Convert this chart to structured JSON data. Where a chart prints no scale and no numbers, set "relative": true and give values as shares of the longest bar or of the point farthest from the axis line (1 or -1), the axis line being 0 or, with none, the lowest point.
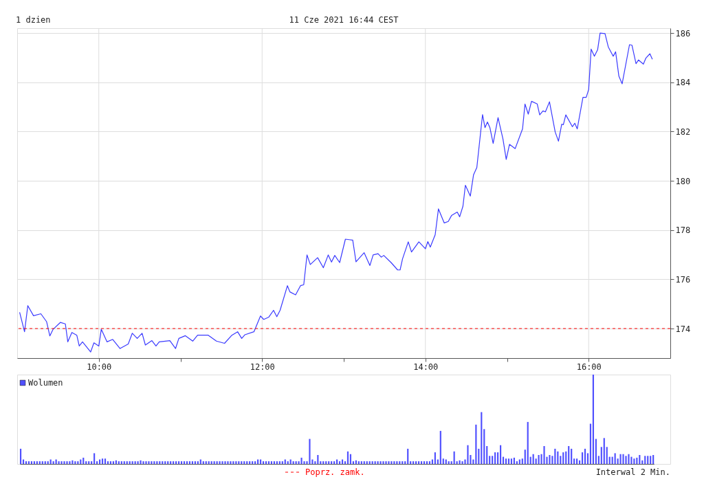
{
  "chart_data": [
    {
      "type": "line",
      "title": "1 dzien",
      "annotations": [
        "11 Cze 2021 16:44 CEST"
      ],
      "xlim": [
        9,
        17
      ],
      "xticks": [
        {
          "value": 10,
          "label": "10:00"
        },
        {
          "value": 11,
          "label": null
        },
        {
          "value": 12,
          "label": "12:00"
        },
        {
          "value": 13,
          "label": null
        },
        {
          "value": 14,
          "label": "14:00"
        },
        {
          "value": 15,
          "label": null
        },
        {
          "value": 16,
          "label": "16:00"
        }
      ],
      "ylim": [
        172.8,
        186.2
      ],
      "yticks": [
        174,
        176,
        178,
        180,
        182,
        184,
        186
      ],
      "grid": true,
      "ref_lines": [
        {
          "axis": "y",
          "value": 174,
          "label": "Poprz. zamk.",
          "color": "#ff0000",
          "line_style": "dashed"
        }
      ],
      "series": [
        {
          "color": "#3a3aff",
          "x": [
            9.03,
            9.09,
            9.13,
            9.2,
            9.29,
            9.36,
            9.4,
            9.44,
            9.53,
            9.59,
            9.62,
            9.67,
            9.73,
            9.76,
            9.8,
            9.9,
            9.94,
            10.0,
            10.03,
            10.1,
            10.17,
            10.26,
            10.36,
            10.41,
            10.47,
            10.53,
            10.57,
            10.65,
            10.7,
            10.74,
            10.87,
            10.94,
            10.98,
            11.06,
            11.15,
            11.21,
            11.34,
            11.44,
            11.54,
            11.63,
            11.7,
            11.75,
            11.79,
            11.9,
            11.98,
            12.02,
            12.08,
            12.14,
            12.18,
            12.22,
            12.31,
            12.34,
            12.41,
            12.47,
            12.51,
            12.55,
            12.59,
            12.68,
            12.75,
            12.81,
            12.85,
            12.89,
            12.95,
            13.02,
            13.11,
            13.15,
            13.25,
            13.32,
            13.36,
            13.42,
            13.46,
            13.49,
            13.58,
            13.66,
            13.69,
            13.72,
            13.79,
            13.83,
            13.92,
            14.0,
            14.03,
            14.06,
            14.12,
            14.16,
            14.23,
            14.28,
            14.32,
            14.39,
            14.42,
            14.46,
            14.49,
            14.55,
            14.59,
            14.63,
            14.7,
            14.73,
            14.76,
            14.79,
            14.83,
            14.89,
            14.95,
            14.99,
            15.03,
            15.1,
            15.19,
            15.22,
            15.26,
            15.3,
            15.37,
            15.4,
            15.44,
            15.47,
            15.52,
            15.59,
            15.63,
            15.67,
            15.69,
            15.72,
            15.8,
            15.83,
            15.86,
            15.93,
            15.97,
            16.0,
            16.03,
            16.07,
            16.11,
            16.14,
            16.2,
            16.24,
            16.3,
            16.33,
            16.37,
            16.41,
            16.5,
            16.53,
            16.58,
            16.61,
            16.67,
            16.7,
            16.75,
            16.78
          ],
          "values": [
            174.66,
            173.87,
            174.93,
            174.52,
            174.6,
            174.28,
            173.7,
            173.97,
            174.25,
            174.19,
            173.46,
            173.84,
            173.73,
            173.29,
            173.46,
            173.05,
            173.42,
            173.29,
            173.97,
            173.46,
            173.56,
            173.19,
            173.37,
            173.81,
            173.6,
            173.81,
            173.33,
            173.51,
            173.29,
            173.46,
            173.51,
            173.19,
            173.6,
            173.71,
            173.49,
            173.73,
            173.73,
            173.49,
            173.4,
            173.73,
            173.87,
            173.6,
            173.75,
            173.87,
            174.51,
            174.37,
            174.46,
            174.74,
            174.48,
            174.74,
            175.74,
            175.49,
            175.37,
            175.74,
            175.78,
            176.99,
            176.6,
            176.88,
            176.47,
            176.99,
            176.7,
            176.97,
            176.68,
            177.63,
            177.59,
            176.71,
            177.08,
            176.56,
            176.99,
            177.04,
            176.9,
            176.97,
            176.68,
            176.38,
            176.38,
            176.83,
            177.52,
            177.11,
            177.52,
            177.24,
            177.53,
            177.31,
            177.81,
            178.86,
            178.29,
            178.35,
            178.59,
            178.73,
            178.54,
            178.97,
            179.82,
            179.38,
            180.25,
            180.54,
            182.69,
            182.16,
            182.39,
            182.16,
            181.52,
            182.57,
            181.7,
            180.87,
            181.48,
            181.31,
            182.11,
            183.12,
            182.71,
            183.23,
            183.12,
            182.68,
            182.84,
            182.8,
            183.21,
            181.98,
            181.61,
            182.3,
            182.28,
            182.68,
            182.2,
            182.34,
            182.11,
            183.39,
            183.39,
            183.71,
            185.35,
            185.06,
            185.33,
            186.0,
            185.98,
            185.44,
            185.06,
            185.24,
            184.25,
            183.94,
            185.53,
            185.51,
            184.76,
            184.91,
            184.74,
            184.98,
            185.16,
            184.94
          ]
        }
      ]
    },
    {
      "type": "bar",
      "relative": true,
      "legend": "top left",
      "annotations": [
        "Interwal 2 Min."
      ],
      "categories": [
        null,
        null,
        null,
        null,
        null,
        null,
        null,
        null,
        null,
        null,
        null,
        null,
        null,
        null,
        null,
        null,
        null,
        null,
        null,
        null,
        null,
        null,
        null,
        null,
        null,
        null,
        null,
        null,
        null,
        null,
        null,
        null,
        null,
        null,
        null,
        null,
        null,
        null,
        null,
        null,
        null,
        null,
        null,
        null,
        null,
        null,
        null,
        null,
        null,
        null,
        null,
        null,
        null,
        null,
        null,
        null,
        null,
        null,
        null,
        null,
        null,
        null,
        null,
        null,
        null,
        null,
        null,
        null,
        null,
        null,
        null,
        null,
        null,
        null,
        null,
        null,
        null,
        null,
        null,
        null,
        null,
        null,
        null,
        null,
        null,
        null,
        null,
        null,
        null,
        null,
        null,
        null,
        null,
        null,
        null,
        null,
        null,
        null,
        null,
        null,
        null,
        null,
        null,
        null,
        null,
        null,
        null,
        null,
        null,
        null,
        null,
        null,
        null,
        null,
        null,
        null,
        null,
        null,
        null,
        null,
        null,
        null,
        null,
        null,
        null,
        null,
        null,
        null,
        null,
        null,
        null,
        null,
        null,
        null,
        null,
        null,
        null,
        null,
        null,
        null,
        null,
        null,
        null,
        null,
        null,
        null,
        null,
        null,
        null,
        null,
        null,
        null,
        null,
        null,
        null,
        null,
        null,
        null,
        null,
        null,
        null,
        null,
        null,
        null,
        null,
        null,
        null,
        null,
        null,
        null,
        null,
        null,
        null,
        null,
        null,
        null,
        null,
        null,
        null,
        null,
        null,
        null,
        null,
        null,
        null,
        null,
        null,
        null,
        null,
        null,
        null,
        null,
        null,
        null,
        null,
        null,
        null,
        null,
        null,
        null,
        null,
        null,
        null,
        null,
        null,
        null,
        null,
        null,
        null,
        null,
        null,
        null,
        null,
        null,
        null,
        null,
        null,
        null,
        null,
        null,
        null,
        null,
        null,
        null,
        null,
        null,
        null,
        null,
        null,
        null,
        null,
        null,
        null
      ],
      "series": [
        {
          "name": "Wolumen",
          "color": "#5050ff",
          "values": [
            0.17,
            0.05,
            0.03,
            0.03,
            0.03,
            0.03,
            0.03,
            0.03,
            0.03,
            0.03,
            0.03,
            0.05,
            0.03,
            0.05,
            0.03,
            0.03,
            0.03,
            0.03,
            0.03,
            0.04,
            0.03,
            0.03,
            0.05,
            0.07,
            0.03,
            0.03,
            0.03,
            0.12,
            0.03,
            0.05,
            0.06,
            0.06,
            0.03,
            0.03,
            0.03,
            0.04,
            0.03,
            0.03,
            0.03,
            0.03,
            0.03,
            0.03,
            0.03,
            0.03,
            0.04,
            0.03,
            0.03,
            0.03,
            0.03,
            0.03,
            0.03,
            0.03,
            0.03,
            0.03,
            0.03,
            0.03,
            0.03,
            0.03,
            0.03,
            0.03,
            0.03,
            0.03,
            0.03,
            0.03,
            0.03,
            0.03,
            0.05,
            0.03,
            0.03,
            0.03,
            0.03,
            0.03,
            0.03,
            0.03,
            0.03,
            0.03,
            0.03,
            0.03,
            0.03,
            0.03,
            0.03,
            0.03,
            0.03,
            0.03,
            0.03,
            0.03,
            0.03,
            0.05,
            0.05,
            0.03,
            0.03,
            0.03,
            0.03,
            0.03,
            0.03,
            0.03,
            0.03,
            0.05,
            0.03,
            0.05,
            0.03,
            0.03,
            0.03,
            0.07,
            0.03,
            0.03,
            0.28,
            0.05,
            0.03,
            0.1,
            0.03,
            0.03,
            0.03,
            0.03,
            0.03,
            0.03,
            0.05,
            0.03,
            0.05,
            0.03,
            0.14,
            0.11,
            0.03,
            0.04,
            0.03,
            0.03,
            0.03,
            0.03,
            0.03,
            0.03,
            0.03,
            0.03,
            0.03,
            0.03,
            0.03,
            0.03,
            0.03,
            0.03,
            0.03,
            0.03,
            0.03,
            0.03,
            0.17,
            0.03,
            0.03,
            0.03,
            0.03,
            0.03,
            0.03,
            0.03,
            0.03,
            0.05,
            0.13,
            0.05,
            0.37,
            0.06,
            0.05,
            0.03,
            0.03,
            0.14,
            0.03,
            0.04,
            0.03,
            0.05,
            0.21,
            0.1,
            0.05,
            0.44,
            0.17,
            0.58,
            0.39,
            0.2,
            0.09,
            0.09,
            0.13,
            0.13,
            0.21,
            0.08,
            0.06,
            0.06,
            0.06,
            0.07,
            0.03,
            0.05,
            0.06,
            0.16,
            0.47,
            0.08,
            0.11,
            0.06,
            0.1,
            0.11,
            0.2,
            0.08,
            0.1,
            0.09,
            0.17,
            0.14,
            0.09,
            0.13,
            0.14,
            0.2,
            0.17,
            0.06,
            0.06,
            0.04,
            0.13,
            0.17,
            0.12,
            0.45,
            1.0,
            0.28,
            0.09,
            0.19,
            0.29,
            0.19,
            0.08,
            0.08,
            0.12,
            0.06,
            0.11,
            0.11,
            0.09,
            0.11,
            0.08,
            0.06,
            0.07,
            0.1,
            0.04,
            0.09,
            0.09,
            0.09,
            0.1
          ]
        }
      ]
    }
  ]
}
